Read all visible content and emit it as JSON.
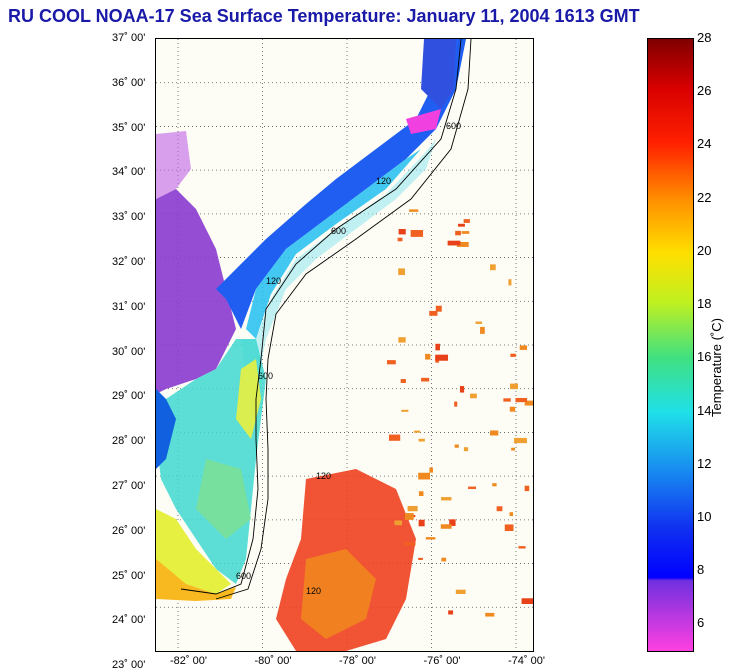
{
  "title": "RU COOL  NOAA-17  Sea Surface Temperature:  January 11, 2004 1613 GMT",
  "lat_labels": [
    "37˚ 00'",
    "36˚ 00'",
    "35˚ 00'",
    "34˚ 00'",
    "33˚ 00'",
    "32˚ 00'",
    "31˚ 00'",
    "30˚ 00'",
    "29˚ 00'",
    "28˚ 00'",
    "27˚ 00'",
    "26˚ 00'",
    "25˚ 00'",
    "24˚ 00'",
    "23˚ 00'"
  ],
  "lon_labels": [
    "-82˚ 00'",
    "-80˚ 00'",
    "-78˚ 00'",
    "-76˚ 00'",
    "-74˚ 00'"
  ],
  "colorbar": {
    "ticks": [
      "28",
      "26",
      "24",
      "22",
      "20",
      "18",
      "16",
      "14",
      "12",
      "10",
      "8",
      "6"
    ],
    "title": "Temperature (˚C)",
    "range": [
      5,
      28
    ]
  },
  "contour_labels": [
    "600",
    "120",
    "600",
    "120",
    "600",
    "120",
    "600",
    "120"
  ]
}
